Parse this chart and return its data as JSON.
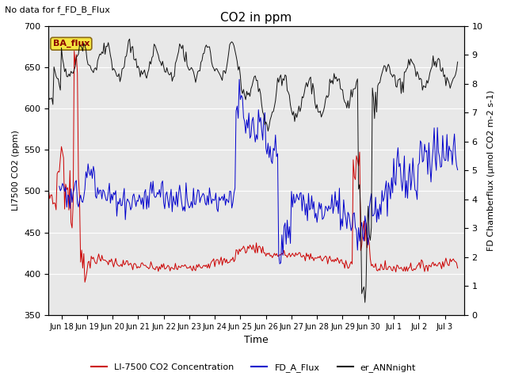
{
  "title": "CO2 in ppm",
  "top_left_text": "No data for f_FD_B_Flux",
  "annotation_box": "BA_flux",
  "ylabel_left": "LI7500 CO2 (ppm)",
  "ylabel_right": "FD Chamberflux (μmol CO2 m-2 s-1)",
  "xlabel": "Time",
  "ylim_left": [
    350,
    700
  ],
  "ylim_right": [
    0.0,
    10.0
  ],
  "yticks_left": [
    350,
    400,
    450,
    500,
    550,
    600,
    650,
    700
  ],
  "yticks_right": [
    0.0,
    1.0,
    2.0,
    3.0,
    4.0,
    5.0,
    6.0,
    7.0,
    8.0,
    9.0,
    10.0
  ],
  "legend_labels": [
    "LI-7500 CO2 Concentration",
    "FD_A_Flux",
    "er_ANNnight"
  ],
  "legend_colors": [
    "#cc0000",
    "#0000cc",
    "#111111"
  ],
  "line_colors": {
    "red": "#cc0000",
    "blue": "#0000cc",
    "black": "#111111"
  },
  "background_color": "#ffffff",
  "plot_bg_color": "#e8e8e8",
  "grid_color": "#ffffff",
  "figsize": [
    6.4,
    4.8
  ],
  "dpi": 100
}
